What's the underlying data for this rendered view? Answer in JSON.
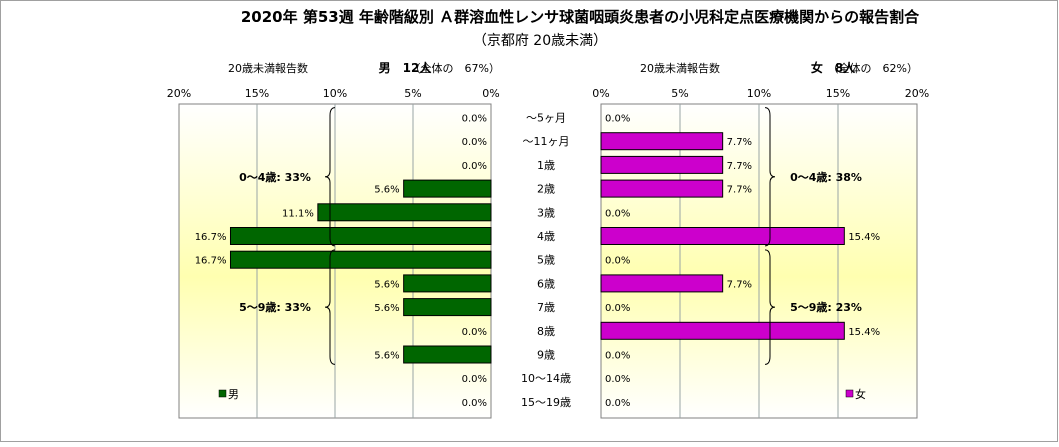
{
  "title": "2020年 第53週 年齢階級別 Ａ群溶血性レンサ球菌咽頭炎患者の小児科定点医療機関からの報告割合",
  "subtitle": "（京都府 20歳未満）",
  "chart_data": {
    "type": "bar",
    "categories": [
      "～5ヶ月",
      "～11ヶ月",
      "1歳",
      "2歳",
      "3歳",
      "4歳",
      "5歳",
      "6歳",
      "7歳",
      "8歳",
      "9歳",
      "10～14歳",
      "15～19歳"
    ],
    "xlim": [
      0,
      20
    ],
    "x_ticks": [
      "0%",
      "5%",
      "10%",
      "15%",
      "20%"
    ],
    "series": [
      {
        "name": "男",
        "side": "left",
        "header_label": "20歳未満報告数",
        "header_count": "男　12人",
        "header_share": "（全体の　67%）",
        "color": "#006600",
        "values": [
          0.0,
          0.0,
          0.0,
          5.6,
          11.1,
          16.7,
          16.7,
          5.6,
          5.6,
          0.0,
          5.6,
          0.0,
          0.0
        ],
        "value_labels": [
          "0.0%",
          "0.0%",
          "0.0%",
          "5.6%",
          "11.1%",
          "16.7%",
          "16.7%",
          "5.6%",
          "5.6%",
          "0.0%",
          "5.6%",
          "0.0%",
          "0.0%"
        ],
        "groups": [
          {
            "label": "0～4歳: 33%",
            "from": 0,
            "to": 5
          },
          {
            "label": "5～9歳: 33%",
            "from": 6,
            "to": 10
          }
        ]
      },
      {
        "name": "女",
        "side": "right",
        "header_label": "20歳未満報告数",
        "header_count": "女　8人",
        "header_share": "（全体の　62%）",
        "color": "#cc00cc",
        "values": [
          0.0,
          7.7,
          7.7,
          7.7,
          0.0,
          15.4,
          0.0,
          7.7,
          0.0,
          15.4,
          0.0,
          0.0,
          0.0
        ],
        "value_labels": [
          "0.0%",
          "7.7%",
          "7.7%",
          "7.7%",
          "0.0%",
          "15.4%",
          "0.0%",
          "7.7%",
          "0.0%",
          "15.4%",
          "0.0%",
          "0.0%",
          "0.0%"
        ],
        "groups": [
          {
            "label": "0～4歳: 38%",
            "from": 0,
            "to": 5
          },
          {
            "label": "5～9歳: 23%",
            "from": 6,
            "to": 10
          }
        ]
      }
    ]
  }
}
